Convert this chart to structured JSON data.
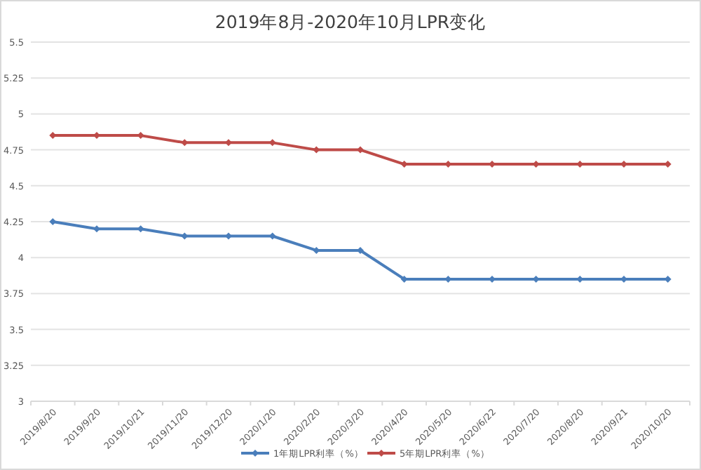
{
  "chart_data": {
    "type": "line",
    "title": "2019年8月-2020年10月LPR变化",
    "categories": [
      "2019/8/20",
      "2019/9/20",
      "2019/10/21",
      "2019/11/20",
      "2019/12/20",
      "2020/1/20",
      "2020/2/20",
      "2020/3/20",
      "2020/4/20",
      "2020/5/20",
      "2020/6/22",
      "2020/7/20",
      "2020/8/20",
      "2020/9/21",
      "2020/10/20"
    ],
    "series": [
      {
        "name": "1年期LPR利率（%）",
        "color": "#4a7ebb",
        "values": [
          4.25,
          4.2,
          4.2,
          4.15,
          4.15,
          4.15,
          4.05,
          4.05,
          3.85,
          3.85,
          3.85,
          3.85,
          3.85,
          3.85,
          3.85
        ]
      },
      {
        "name": "5年期LPR利率（%）",
        "color": "#be4b48",
        "values": [
          4.85,
          4.85,
          4.85,
          4.8,
          4.8,
          4.8,
          4.75,
          4.75,
          4.65,
          4.65,
          4.65,
          4.65,
          4.65,
          4.65,
          4.65
        ]
      }
    ],
    "ylim": [
      3,
      5.5
    ],
    "yticks": [
      3,
      3.25,
      3.5,
      3.75,
      4,
      4.25,
      4.5,
      4.75,
      5,
      5.25,
      5.5
    ],
    "grid": "y",
    "legend": "bottom",
    "marker": "diamond",
    "line_style": "solid"
  }
}
